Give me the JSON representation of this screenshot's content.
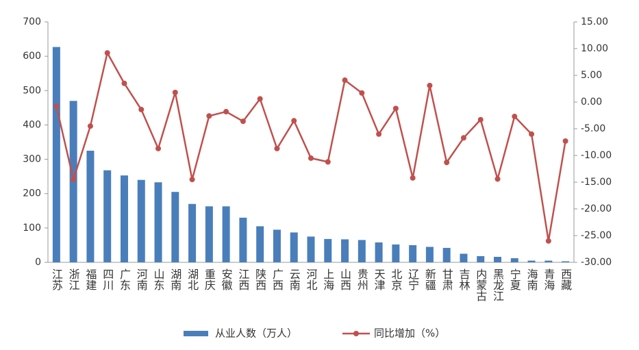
{
  "chart_data": {
    "type": "bar-line",
    "categories": [
      "江苏",
      "浙江",
      "福建",
      "四川",
      "广东",
      "河南",
      "山东",
      "湖南",
      "湖北",
      "重庆",
      "安徽",
      "江西",
      "陕西",
      "广西",
      "云南",
      "河北",
      "上海",
      "山西",
      "贵州",
      "天津",
      "北京",
      "辽宁",
      "新疆",
      "甘肃",
      "吉林",
      "内蒙古",
      "黑龙江",
      "宁夏",
      "海南",
      "青海",
      "西藏"
    ],
    "series": [
      {
        "name": "从业人数（万人）",
        "type": "bar",
        "color": "#4a7ebb",
        "values": [
          627,
          470,
          325,
          268,
          253,
          240,
          233,
          205,
          170,
          163,
          163,
          130,
          105,
          95,
          87,
          75,
          68,
          67,
          65,
          58,
          52,
          50,
          45,
          42,
          25,
          18,
          16,
          12,
          5,
          5,
          3
        ]
      },
      {
        "name": "同比增加（%）",
        "type": "line",
        "axis": "y2",
        "color": "#c0504d",
        "values": [
          -0.8,
          -14.5,
          -4.5,
          9.2,
          3.5,
          -1.4,
          -8.7,
          1.8,
          -14.5,
          -2.6,
          -1.8,
          -3.6,
          0.6,
          -8.7,
          -3.5,
          -10.5,
          -11.2,
          4.1,
          1.7,
          -6.0,
          -1.2,
          -14.2,
          3.1,
          -11.3,
          -6.7,
          -3.3,
          -14.4,
          -2.7,
          -6.0,
          -26.0,
          -7.3
        ]
      }
    ],
    "ylim": [
      0,
      700
    ],
    "yticks": [
      0,
      100,
      200,
      300,
      400,
      500,
      600,
      700
    ],
    "y2lim": [
      -30,
      15
    ],
    "y2ticks": [
      {
        "value": -30,
        "label": "-30.00"
      },
      {
        "value": -25,
        "label": "-25.00"
      },
      {
        "value": -20,
        "label": "-20.00"
      },
      {
        "value": -15,
        "label": "-15.00"
      },
      {
        "value": -10,
        "label": "-10.00"
      },
      {
        "value": -5,
        "label": "-5.00"
      },
      {
        "value": 0,
        "label": "0.00"
      },
      {
        "value": 5,
        "label": "5.00"
      },
      {
        "value": 10,
        "label": "10.00"
      },
      {
        "value": 15,
        "label": "15.00"
      }
    ],
    "legend": "bottom"
  }
}
